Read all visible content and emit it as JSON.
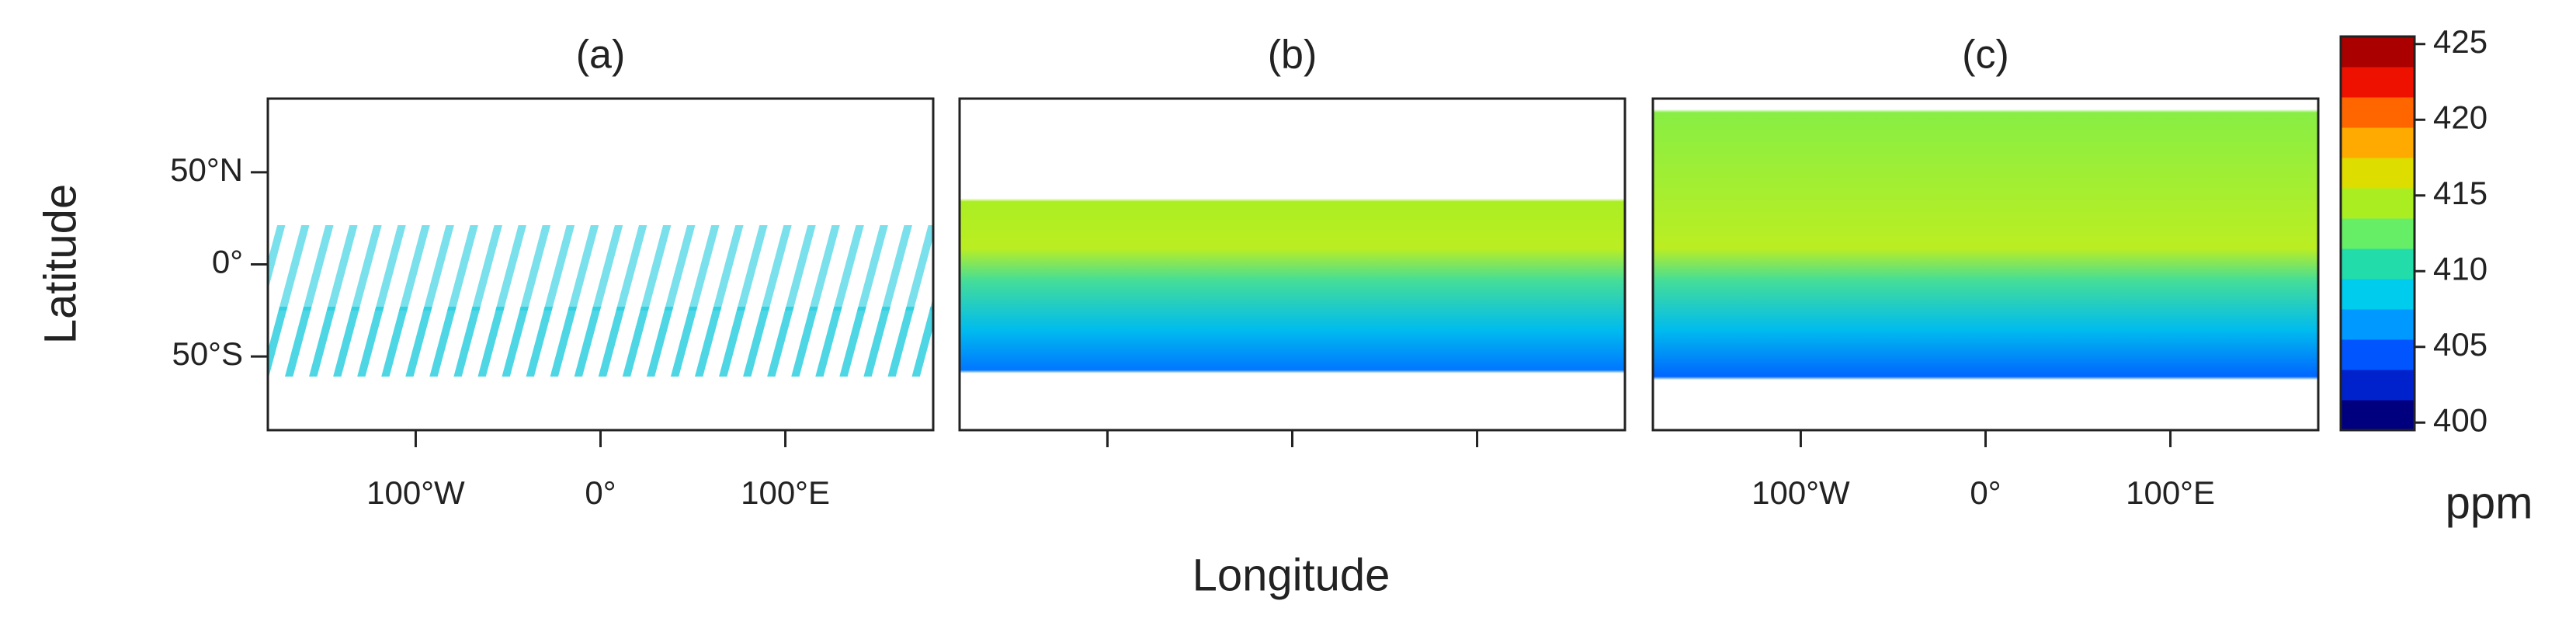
{
  "chart_data": {
    "type": "map",
    "panels": [
      {
        "title": "(a)",
        "xtick_labels": true,
        "ytick_labels": true
      },
      {
        "title": "(b)",
        "xtick_labels": false,
        "ytick_labels": false
      },
      {
        "title": "(c)",
        "xtick_labels": true,
        "ytick_labels": false
      }
    ],
    "xlabel": "Longitude",
    "ylabel": "Latitude",
    "xlim": [
      -180,
      180
    ],
    "ylim": [
      -90,
      90
    ],
    "xticks": [
      {
        "value": -100,
        "label": "100°W"
      },
      {
        "value": 0,
        "label": "0°"
      },
      {
        "value": 100,
        "label": "100°E"
      }
    ],
    "yticks": [
      {
        "value": 50,
        "label": "50°N"
      },
      {
        "value": 0,
        "label": "0°"
      },
      {
        "value": -50,
        "label": "50°S"
      }
    ],
    "colorbar": {
      "label": "ppm",
      "lim": [
        399.5,
        425.5
      ],
      "ticks": [
        400,
        405,
        410,
        415,
        420,
        425
      ],
      "colors": [
        "#00007f",
        "#0022cc",
        "#0055ff",
        "#0099ff",
        "#00ccee",
        "#22ddaa",
        "#66ee66",
        "#aaee22",
        "#dddd00",
        "#ffaa00",
        "#ff6600",
        "#ee1100",
        "#aa0000"
      ]
    }
  }
}
